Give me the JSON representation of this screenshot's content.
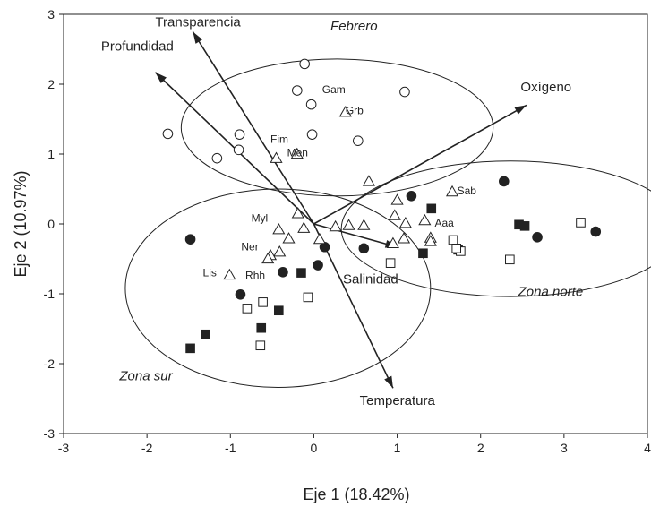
{
  "chart_data": {
    "type": "scatter",
    "title": "",
    "xlabel": "Eje 1 (18.42%)",
    "ylabel": "Eje 2 (10.97%)",
    "xlim": [
      -3,
      4
    ],
    "ylim": [
      -3,
      3
    ],
    "xticks": [
      "-3",
      "-2",
      "-1",
      "0",
      "1",
      "2",
      "3",
      "4"
    ],
    "yticks": [
      "-3",
      "-2",
      "-1",
      "0",
      "1",
      "2",
      "3"
    ],
    "grid": false,
    "vectors": [
      {
        "name": "Transparencia",
        "x": -1.45,
        "y": 2.75,
        "label_x": -1.9,
        "label_y": 2.83
      },
      {
        "name": "Profundidad",
        "x": -1.9,
        "y": 2.17,
        "label_x": -2.55,
        "label_y": 2.48
      },
      {
        "name": "Oxígeno",
        "x": 2.55,
        "y": 1.7,
        "label_x": 2.48,
        "label_y": 1.9
      },
      {
        "name": "Temperatura",
        "x": 0.95,
        "y": -2.35,
        "label_x": 0.55,
        "label_y": -2.59
      },
      {
        "name": "Salinidad",
        "x": 1.0,
        "y": -0.33,
        "label_x": 0.35,
        "label_y": -0.85
      }
    ],
    "groups": [
      {
        "name": "Febrero",
        "cx": 0.28,
        "cy": 1.38,
        "rx": 1.87,
        "ry": 0.98,
        "label_x": 0.2,
        "label_y": 2.77
      },
      {
        "name": "Zona sur",
        "cx": -0.43,
        "cy": -0.92,
        "rx": 1.83,
        "ry": 1.42,
        "label_x": -2.33,
        "label_y": -2.24
      },
      {
        "name": "Zona norte",
        "cx": 2.36,
        "cy": -0.07,
        "rx": 2.03,
        "ry": 0.97,
        "label_x": 2.45,
        "label_y": -1.03
      }
    ],
    "species_labels": [
      {
        "name": "Gam",
        "x": 0.1,
        "y": 1.87
      },
      {
        "name": "Grb",
        "x": 0.38,
        "y": 1.57
      },
      {
        "name": "Fim",
        "x": -0.52,
        "y": 1.16
      },
      {
        "name": "Men",
        "x": -0.32,
        "y": 0.97
      },
      {
        "name": "Sab",
        "x": 1.72,
        "y": 0.42
      },
      {
        "name": "Myl",
        "x": -0.75,
        "y": 0.03
      },
      {
        "name": "Aaa",
        "x": 1.45,
        "y": -0.04
      },
      {
        "name": "Ner",
        "x": -0.87,
        "y": -0.38
      },
      {
        "name": "Lis",
        "x": -1.33,
        "y": -0.75
      },
      {
        "name": "Rhh",
        "x": -0.82,
        "y": -0.79
      }
    ],
    "series": [
      {
        "marker": "open-circle",
        "points": [
          [
            -0.11,
            2.29
          ],
          [
            -0.2,
            1.91
          ],
          [
            -0.03,
            1.71
          ],
          [
            1.09,
            1.89
          ],
          [
            -0.02,
            1.28
          ],
          [
            0.53,
            1.19
          ],
          [
            -0.89,
            1.28
          ],
          [
            -1.75,
            1.29
          ],
          [
            -1.16,
            0.94
          ],
          [
            -0.9,
            1.06
          ]
        ]
      },
      {
        "marker": "filled-circle",
        "points": [
          [
            -1.48,
            -0.22
          ],
          [
            -0.88,
            -1.01
          ],
          [
            -0.37,
            -0.69
          ],
          [
            0.05,
            -0.59
          ],
          [
            0.13,
            -0.33
          ],
          [
            0.6,
            -0.35
          ],
          [
            1.17,
            0.4
          ],
          [
            2.28,
            0.61
          ],
          [
            2.68,
            -0.19
          ],
          [
            3.38,
            -0.11
          ]
        ]
      },
      {
        "marker": "open-triangle",
        "points": [
          [
            -0.2,
            1.0
          ],
          [
            -0.45,
            0.94
          ],
          [
            0.38,
            1.6
          ],
          [
            0.66,
            0.61
          ],
          [
            -0.19,
            0.15
          ],
          [
            -0.42,
            -0.08
          ],
          [
            -0.3,
            -0.21
          ],
          [
            -0.12,
            -0.06
          ],
          [
            0.26,
            -0.04
          ],
          [
            0.42,
            -0.02
          ],
          [
            0.6,
            -0.02
          ],
          [
            0.95,
            -0.28
          ],
          [
            1.08,
            -0.21
          ],
          [
            1.0,
            0.34
          ],
          [
            0.97,
            0.12
          ],
          [
            1.1,
            0.01
          ],
          [
            1.33,
            0.05
          ],
          [
            1.4,
            -0.2
          ],
          [
            1.4,
            -0.25
          ],
          [
            1.66,
            0.46
          ],
          [
            -0.41,
            -0.4
          ],
          [
            -0.52,
            -0.45
          ],
          [
            -0.55,
            -0.5
          ],
          [
            -1.01,
            -0.73
          ],
          [
            0.07,
            -0.22
          ]
        ]
      },
      {
        "marker": "filled-square",
        "points": [
          [
            -1.48,
            -1.78
          ],
          [
            -1.3,
            -1.58
          ],
          [
            -0.63,
            -1.49
          ],
          [
            -0.42,
            -1.24
          ],
          [
            -0.15,
            -0.7
          ],
          [
            1.41,
            0.22
          ],
          [
            1.31,
            -0.42
          ],
          [
            1.73,
            -0.37
          ],
          [
            2.46,
            -0.01
          ],
          [
            2.53,
            -0.03
          ]
        ]
      },
      {
        "marker": "open-square",
        "points": [
          [
            -0.8,
            -1.21
          ],
          [
            -0.61,
            -1.12
          ],
          [
            -0.64,
            -1.74
          ],
          [
            -0.07,
            -1.05
          ],
          [
            0.92,
            -0.56
          ],
          [
            1.67,
            -0.23
          ],
          [
            1.76,
            -0.39
          ],
          [
            2.35,
            -0.51
          ],
          [
            3.2,
            0.02
          ],
          [
            1.71,
            -0.35
          ]
        ]
      }
    ]
  }
}
